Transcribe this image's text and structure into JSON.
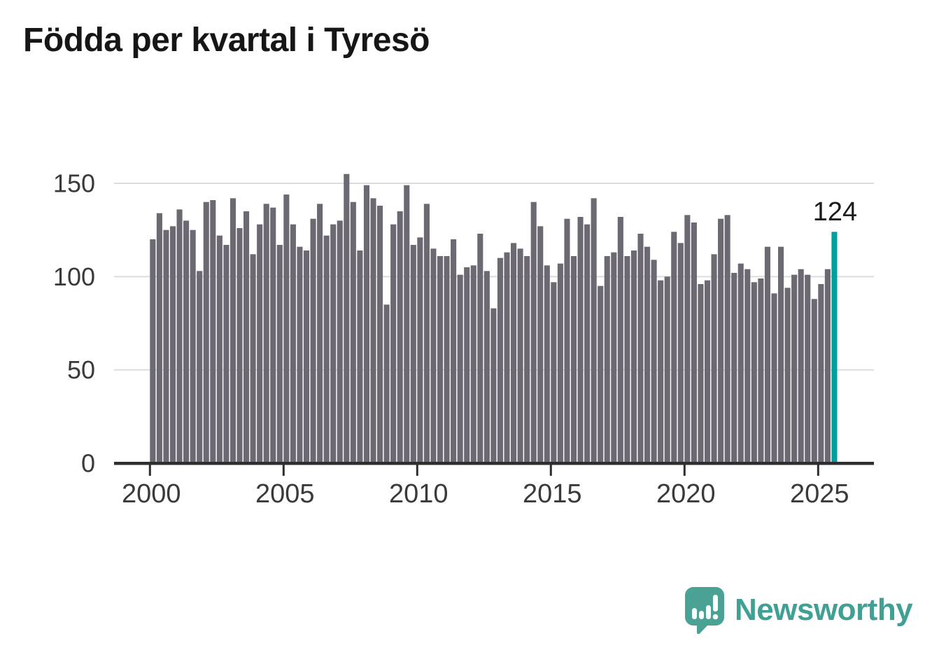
{
  "title": "Födda per kvartal i Tyresö",
  "branding": {
    "name": "Newsworthy",
    "icon": "newsworthy-speech-bubble-chart-icon"
  },
  "colors": {
    "bar": "#6d6972",
    "highlight": "#00a09e",
    "title_text": "#161616",
    "axis_text": "#3a3a3a",
    "gridline": "#dcdcdc",
    "axis_line": "#2e2e2e",
    "annotation_text": "#1c1c1c",
    "logo": "#4aa294",
    "logo_text": "#3fa093"
  },
  "chart_data": {
    "type": "bar",
    "title": "Födda per kvartal i Tyresö",
    "grid": "horizontal",
    "legend": "none",
    "y_ticks": [
      0,
      50,
      100,
      150
    ],
    "ylim": [
      0,
      160
    ],
    "x_tick_labels": [
      "2000",
      "2005",
      "2010",
      "2015",
      "2020",
      "2025"
    ],
    "x_tick_years": [
      2000,
      2005,
      2010,
      2015,
      2020,
      2025
    ],
    "highlight_index": 102,
    "highlight_value_label": "124",
    "categories": [
      "2000 Q1",
      "2000 Q2",
      "2000 Q3",
      "2000 Q4",
      "2001 Q1",
      "2001 Q2",
      "2001 Q3",
      "2001 Q4",
      "2002 Q1",
      "2002 Q2",
      "2002 Q3",
      "2002 Q4",
      "2003 Q1",
      "2003 Q2",
      "2003 Q3",
      "2003 Q4",
      "2004 Q1",
      "2004 Q2",
      "2004 Q3",
      "2004 Q4",
      "2005 Q1",
      "2005 Q2",
      "2005 Q3",
      "2005 Q4",
      "2006 Q1",
      "2006 Q2",
      "2006 Q3",
      "2006 Q4",
      "2007 Q1",
      "2007 Q2",
      "2007 Q3",
      "2007 Q4",
      "2008 Q1",
      "2008 Q2",
      "2008 Q3",
      "2008 Q4",
      "2009 Q1",
      "2009 Q2",
      "2009 Q3",
      "2009 Q4",
      "2010 Q1",
      "2010 Q2",
      "2010 Q3",
      "2010 Q4",
      "2011 Q1",
      "2011 Q2",
      "2011 Q3",
      "2011 Q4",
      "2012 Q1",
      "2012 Q2",
      "2012 Q3",
      "2012 Q4",
      "2013 Q1",
      "2013 Q2",
      "2013 Q3",
      "2013 Q4",
      "2014 Q1",
      "2014 Q2",
      "2014 Q3",
      "2014 Q4",
      "2015 Q1",
      "2015 Q2",
      "2015 Q3",
      "2015 Q4",
      "2016 Q1",
      "2016 Q2",
      "2016 Q3",
      "2016 Q4",
      "2017 Q1",
      "2017 Q2",
      "2017 Q3",
      "2017 Q4",
      "2018 Q1",
      "2018 Q2",
      "2018 Q3",
      "2018 Q4",
      "2019 Q1",
      "2019 Q2",
      "2019 Q3",
      "2019 Q4",
      "2020 Q1",
      "2020 Q2",
      "2020 Q3",
      "2020 Q4",
      "2021 Q1",
      "2021 Q2",
      "2021 Q3",
      "2021 Q4",
      "2022 Q1",
      "2022 Q2",
      "2022 Q3",
      "2022 Q4",
      "2023 Q1",
      "2023 Q2",
      "2023 Q3",
      "2023 Q4",
      "2024 Q1",
      "2024 Q2",
      "2024 Q3",
      "2024 Q4",
      "2025 Q1",
      "2025 Q2",
      "2025 Q3"
    ],
    "values": [
      120,
      134,
      125,
      127,
      136,
      130,
      125,
      103,
      140,
      141,
      122,
      117,
      142,
      126,
      135,
      112,
      128,
      139,
      137,
      117,
      144,
      128,
      116,
      114,
      131,
      139,
      122,
      128,
      130,
      155,
      140,
      114,
      149,
      142,
      138,
      85,
      128,
      135,
      149,
      117,
      121,
      139,
      115,
      111,
      111,
      120,
      101,
      105,
      106,
      123,
      103,
      83,
      110,
      113,
      118,
      115,
      111,
      140,
      127,
      106,
      97,
      107,
      131,
      111,
      132,
      128,
      142,
      95,
      111,
      113,
      132,
      111,
      114,
      123,
      116,
      109,
      98,
      100,
      124,
      118,
      133,
      129,
      96,
      98,
      112,
      131,
      133,
      102,
      107,
      104,
      97,
      99,
      116,
      91,
      116,
      94,
      101,
      104,
      101,
      88,
      96,
      104,
      124
    ]
  }
}
